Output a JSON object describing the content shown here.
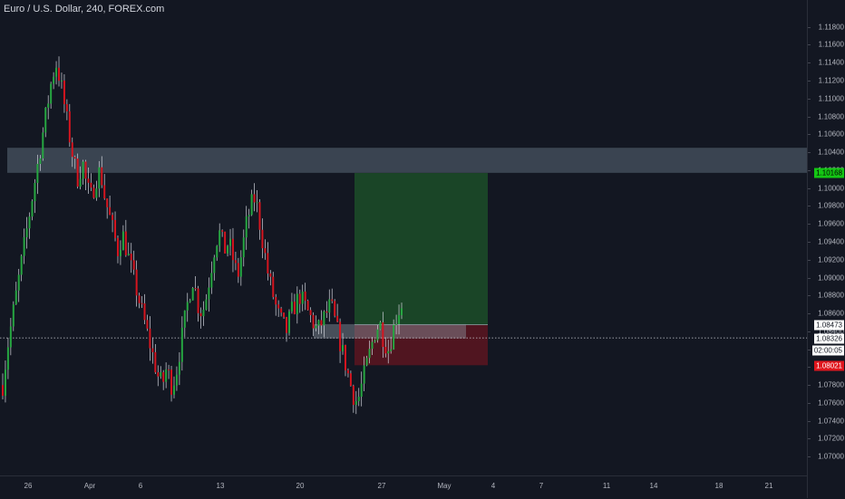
{
  "symbol_title": "Euro / U.S. Dollar, 240, FOREX.com",
  "colors": {
    "background": "#131722",
    "bull": "#26a641",
    "bear": "#d5151f",
    "wick": "#d1d4dc",
    "zone": "#5b6a78",
    "target": "#1e5a2a",
    "stop": "#6b1620",
    "target_label": "#14c714",
    "stop_label": "#e0161d"
  },
  "y_axis": {
    "min": 1.068,
    "max": 1.1205,
    "ticks": [
      "1.11800",
      "1.11600",
      "1.11400",
      "1.11200",
      "1.11000",
      "1.10800",
      "1.10600",
      "1.10400",
      "1.10200",
      "1.10000",
      "1.09800",
      "1.09600",
      "1.09400",
      "1.09200",
      "1.09000",
      "1.08800",
      "1.08600",
      "1.08400",
      "1.08200",
      "1.08000",
      "1.07800",
      "1.07600",
      "1.07400",
      "1.07200",
      "1.07000"
    ]
  },
  "x_axis": {
    "labels": [
      "26",
      "Apr",
      "6",
      "13",
      "20",
      "27",
      "May",
      "4",
      "7",
      "11",
      "14",
      "18",
      "21"
    ]
  },
  "price_labels": {
    "target": "1.10168",
    "entry": "1.08473",
    "current": "1.08326",
    "countdown": "02:00:05",
    "stop": "1.08021"
  },
  "chart_data": {
    "type": "candlestick",
    "title": "Euro / U.S. Dollar, 240, FOREX.com",
    "ylim": [
      1.068,
      1.1205
    ],
    "x_labels": [
      "26",
      "Apr",
      "6",
      "13",
      "20",
      "27",
      "May",
      "4",
      "7",
      "11",
      "14",
      "18",
      "21"
    ],
    "close_path": [
      1.078,
      1.082,
      1.085,
      1.088,
      1.091,
      1.094,
      1.097,
      1.1,
      1.103,
      1.106,
      1.109,
      1.112,
      1.114,
      1.112,
      1.109,
      1.106,
      1.103,
      1.101,
      1.103,
      1.1,
      1.099,
      1.101,
      1.102,
      1.099,
      1.097,
      1.095,
      1.093,
      1.095,
      1.093,
      1.091,
      1.089,
      1.087,
      1.085,
      1.083,
      1.081,
      1.079,
      1.078,
      1.08,
      1.078,
      1.079,
      1.082,
      1.085,
      1.088,
      1.09,
      1.087,
      1.086,
      1.088,
      1.091,
      1.094,
      1.095,
      1.093,
      1.094,
      1.092,
      1.09,
      1.093,
      1.096,
      1.098,
      1.099,
      1.096,
      1.093,
      1.09,
      1.088,
      1.086,
      1.085,
      1.084,
      1.086,
      1.087,
      1.088,
      1.087,
      1.086,
      1.085,
      1.084,
      1.085,
      1.086,
      1.087,
      1.085,
      1.083,
      1.081,
      1.079,
      1.077,
      1.076,
      1.078,
      1.08,
      1.082,
      1.084,
      1.085,
      1.083,
      1.082,
      1.084,
      1.086,
      1.087
    ],
    "resistance_zone": [
      1.1017,
      1.1045
    ],
    "entry": 1.08473,
    "target": 1.10168,
    "stop": 1.08021,
    "current_price": 1.08326
  }
}
